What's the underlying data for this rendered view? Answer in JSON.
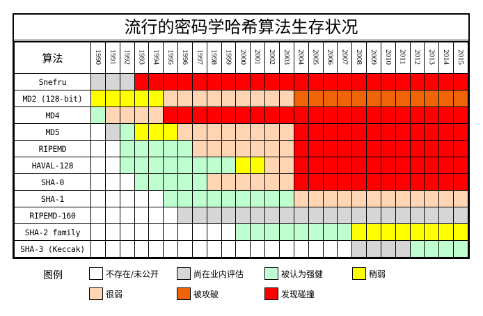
{
  "title": "流行的密码学哈希算法生存状况",
  "header": {
    "name_col": "算法",
    "years": [
      "1990",
      "1991",
      "1992",
      "1993",
      "1994",
      "1995",
      "1996",
      "1997",
      "1998",
      "1999",
      "2000",
      "2001",
      "2002",
      "2003",
      "2004",
      "2005",
      "2006",
      "2007",
      "2008",
      "2009",
      "2010",
      "2011",
      "2012",
      "2013",
      "2014",
      "2015"
    ]
  },
  "status_colors": {
    "N": "#ffffff",
    "E": "#d6d6d6",
    "S": "#bfffcf",
    "W": "#ffff00",
    "V": "#ffd5b4",
    "B": "#ef6407",
    "C": "#ff0000"
  },
  "rows": [
    {
      "name": "Snefru",
      "cells": [
        "E",
        "E",
        "E",
        "C",
        "C",
        "C",
        "C",
        "C",
        "C",
        "C",
        "C",
        "C",
        "C",
        "C",
        "C",
        "C",
        "C",
        "C",
        "C",
        "C",
        "C",
        "C",
        "C",
        "C",
        "C",
        "C"
      ]
    },
    {
      "name": "MD2 (128-bit)",
      "cells": [
        "W",
        "W",
        "W",
        "W",
        "W",
        "V",
        "V",
        "V",
        "V",
        "V",
        "V",
        "V",
        "V",
        "V",
        "B",
        "B",
        "B",
        "B",
        "B",
        "B",
        "B",
        "B",
        "B",
        "B",
        "B",
        "B"
      ]
    },
    {
      "name": "MD4",
      "cells": [
        "S",
        "V",
        "V",
        "V",
        "V",
        "C",
        "C",
        "C",
        "C",
        "C",
        "C",
        "C",
        "C",
        "C",
        "C",
        "C",
        "C",
        "C",
        "C",
        "C",
        "C",
        "C",
        "C",
        "C",
        "C",
        "C"
      ]
    },
    {
      "name": "MD5",
      "cells": [
        "N",
        "E",
        "S",
        "W",
        "W",
        "W",
        "V",
        "V",
        "V",
        "V",
        "V",
        "V",
        "V",
        "V",
        "C",
        "C",
        "C",
        "C",
        "C",
        "C",
        "C",
        "C",
        "C",
        "C",
        "C",
        "C"
      ]
    },
    {
      "name": "RIPEMD",
      "cells": [
        "N",
        "N",
        "S",
        "S",
        "S",
        "S",
        "S",
        "V",
        "V",
        "V",
        "V",
        "V",
        "V",
        "V",
        "C",
        "C",
        "C",
        "C",
        "C",
        "C",
        "C",
        "C",
        "C",
        "C",
        "C",
        "C"
      ]
    },
    {
      "name": "HAVAL-128",
      "cells": [
        "N",
        "N",
        "S",
        "S",
        "S",
        "S",
        "S",
        "S",
        "S",
        "S",
        "W",
        "W",
        "V",
        "V",
        "C",
        "C",
        "C",
        "C",
        "C",
        "C",
        "C",
        "C",
        "C",
        "C",
        "C",
        "C"
      ]
    },
    {
      "name": "SHA-0",
      "cells": [
        "N",
        "N",
        "N",
        "S",
        "S",
        "S",
        "S",
        "S",
        "V",
        "V",
        "V",
        "V",
        "V",
        "V",
        "C",
        "C",
        "C",
        "C",
        "C",
        "C",
        "C",
        "C",
        "C",
        "C",
        "C",
        "C"
      ]
    },
    {
      "name": "SHA-1",
      "cells": [
        "N",
        "N",
        "N",
        "N",
        "N",
        "S",
        "S",
        "S",
        "S",
        "S",
        "S",
        "S",
        "S",
        "S",
        "V",
        "V",
        "V",
        "V",
        "V",
        "V",
        "V",
        "V",
        "V",
        "V",
        "V",
        "V"
      ]
    },
    {
      "name": "RIPEMD-160",
      "cells": [
        "N",
        "N",
        "N",
        "N",
        "N",
        "N",
        "E",
        "E",
        "E",
        "E",
        "E",
        "E",
        "E",
        "E",
        "E",
        "E",
        "E",
        "E",
        "E",
        "E",
        "E",
        "E",
        "E",
        "E",
        "E",
        "E"
      ]
    },
    {
      "name": "SHA-2 family",
      "cells": [
        "N",
        "N",
        "N",
        "N",
        "N",
        "N",
        "N",
        "N",
        "N",
        "N",
        "S",
        "S",
        "S",
        "S",
        "S",
        "S",
        "S",
        "S",
        "W",
        "W",
        "W",
        "W",
        "W",
        "W",
        "W",
        "W"
      ]
    },
    {
      "name": "SHA-3 (Keccak)",
      "cells": [
        "N",
        "N",
        "N",
        "N",
        "N",
        "N",
        "N",
        "N",
        "N",
        "N",
        "N",
        "N",
        "N",
        "N",
        "N",
        "N",
        "N",
        "N",
        "E",
        "E",
        "E",
        "E",
        "S",
        "S",
        "S",
        "S"
      ]
    }
  ],
  "legend": {
    "label": "图例",
    "items": [
      {
        "code": "N",
        "label": "不存在/未公开"
      },
      {
        "code": "E",
        "label": "尚在业内评估"
      },
      {
        "code": "S",
        "label": "被认为强健"
      },
      {
        "code": "W",
        "label": "稍弱"
      },
      {
        "code": "V",
        "label": "很弱"
      },
      {
        "code": "B",
        "label": "被攻破"
      },
      {
        "code": "C",
        "label": "发现碰撞"
      }
    ]
  }
}
